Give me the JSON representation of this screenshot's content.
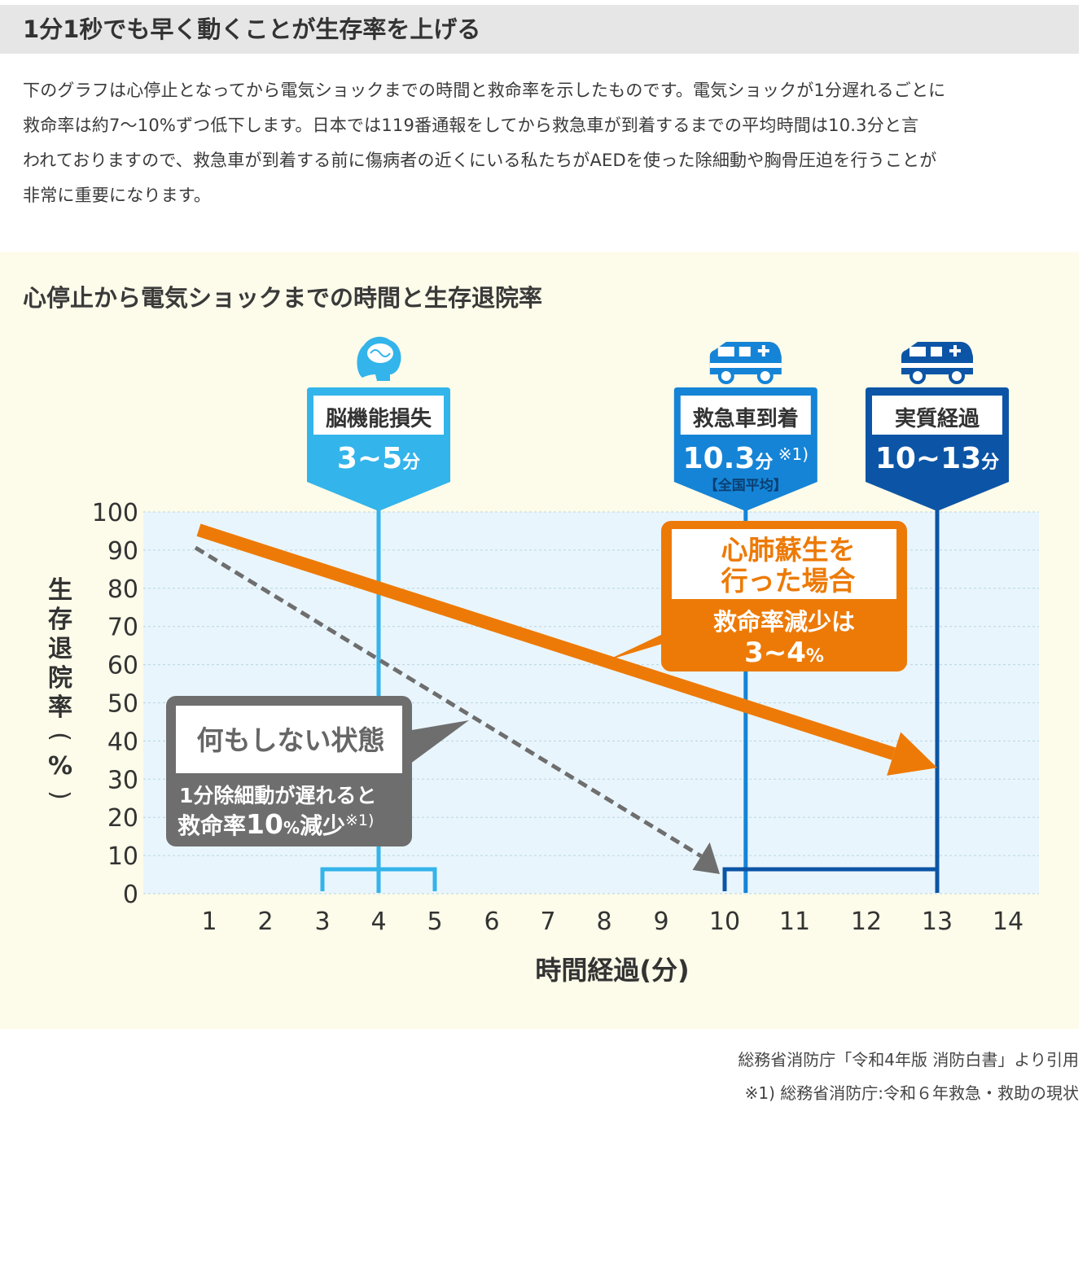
{
  "section": {
    "title": "1分1秒でも早く動くことが生存率を上げる"
  },
  "intro": {
    "lines": [
      "下のグラフは心停止となってから電気ショックまでの時間と救命率を示したものです。電気ショックが1分遅れるごとに",
      "救命率は約7〜10%ずつ低下します。日本では119番通報をしてから救急車が到着するまでの平均時間は10.3分と言",
      "われておりますので、救急車が到着する前に傷病者の近くにいる私たちがAEDを使った除細動や胸骨圧迫を行うことが",
      "非常に重要になります。"
    ]
  },
  "chart_data": {
    "type": "line",
    "title": "心停止から電気ショックまでの時間と生存退院率",
    "xlabel": "時間経過(分)",
    "ylabel": "生存退院率(%)",
    "ylim": [
      0,
      100
    ],
    "yticks": [
      0,
      10,
      20,
      30,
      40,
      50,
      60,
      70,
      80,
      90,
      100
    ],
    "xticks": [
      1,
      2,
      3,
      4,
      5,
      6,
      7,
      8,
      9,
      10,
      11,
      12,
      13,
      14
    ],
    "grid": true,
    "series": [
      {
        "key": "cpr",
        "x": [
          1,
          13
        ],
        "y": [
          94,
          33
        ],
        "color": "#ed7a06",
        "style": "solid-arrow"
      },
      {
        "key": "none",
        "x": [
          1,
          10
        ],
        "y": [
          90,
          6
        ],
        "color": "#6e6e6e",
        "style": "dashed-arrow"
      }
    ],
    "markers": [
      {
        "key": "brain",
        "x": 4,
        "label": "脳機能損失",
        "value": "3~5",
        "unit": "分",
        "range": [
          3,
          5
        ],
        "color": "#33b4ea",
        "icon": "brain-icon"
      },
      {
        "key": "ambulance",
        "x": 10.3,
        "label": "救急車到着",
        "value": "10.3",
        "unit": "分",
        "note": "※1)",
        "sub": "【全国平均】",
        "color": "#1584d6",
        "icon": "ambulance-icon"
      },
      {
        "key": "actual",
        "x": 13,
        "label": "実質経過",
        "value": "10~13",
        "unit": "分",
        "range": [
          10,
          13
        ],
        "color": "#0c55a6",
        "icon": "ambulance-icon"
      }
    ],
    "annotations": {
      "cpr": {
        "title_line1": "心肺蘇生を",
        "title_line2": "行った場合",
        "line1": "救命率減少は",
        "value": "3~4",
        "unit": "%",
        "color": "#ed7a06"
      },
      "none": {
        "title": "何もしない状態",
        "line1": "1分除細動が遅れると",
        "line2_a": "救命率",
        "line2_value": "10",
        "line2_unit": "%",
        "line2_b": "減少",
        "note": "※1)",
        "color": "#6e6e6e"
      }
    }
  },
  "notes": {
    "source": "総務省消防庁「令和4年版 消防白書」より引用",
    "footnote": "※1) 総務省消防庁:令和６年救急・救助の現状"
  }
}
